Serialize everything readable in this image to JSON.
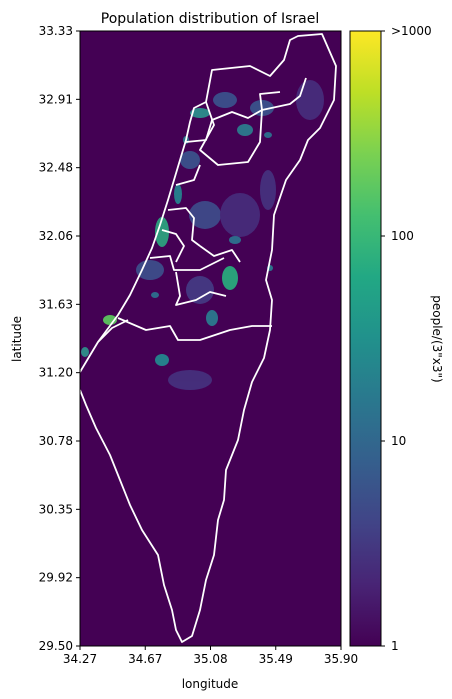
{
  "chart_data": {
    "type": "heatmap",
    "title": "Population distribution of Israel",
    "xlabel": "longitude",
    "ylabel": "latitude",
    "xlim": [
      34.27,
      35.9
    ],
    "ylim": [
      29.5,
      33.33
    ],
    "x_ticks": [
      "34.27",
      "34.67",
      "35.08",
      "35.49",
      "35.90"
    ],
    "y_ticks": [
      "33.33",
      "32.91",
      "32.48",
      "32.06",
      "31.63",
      "31.20",
      "30.78",
      "30.35",
      "29.92",
      "29.50"
    ],
    "colorbar": {
      "label": "people/(3\"x3\")",
      "scale": "log",
      "range": [
        1,
        1000
      ],
      "tick_labels": [
        "1",
        "10",
        "100",
        ">1000"
      ],
      "colormap": "viridis"
    },
    "background_color": "#440154",
    "border_color": "#ffffff"
  }
}
